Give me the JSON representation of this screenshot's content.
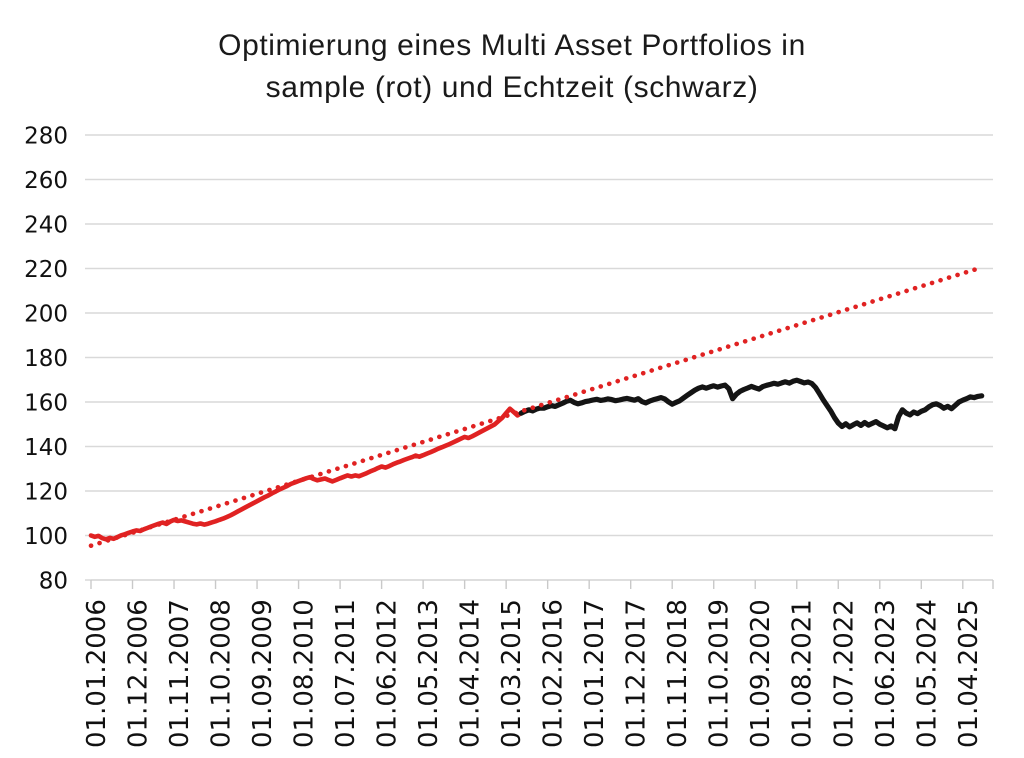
{
  "chart_data": {
    "type": "line",
    "title_line1": "Optimierung eines Multi Asset Portfolios in",
    "title_line2": "sample (rot) und Echtzeit (schwarz)",
    "xlabel": "",
    "ylabel": "",
    "ylim": [
      80,
      280
    ],
    "y_ticks": [
      280,
      260,
      240,
      220,
      200,
      180,
      160,
      140,
      120,
      100,
      80
    ],
    "grid": true,
    "grid_color": "#d9d9d9",
    "axis_color": "#c9c9c9",
    "text_color": "#111111",
    "x_unit": "month",
    "x_slots": 240,
    "x_label_step": 11,
    "x_labels": [
      "01.01.2006",
      "01.12.2006",
      "01.11.2007",
      "01.10.2008",
      "01.09.2009",
      "01.08.2010",
      "01.07.2011",
      "01.06.2012",
      "01.05.2013",
      "01.04.2014",
      "01.03.2015",
      "01.02.2016",
      "01.01.2017",
      "01.12.2017",
      "01.11.2018",
      "01.10.2019",
      "01.09.2020",
      "01.08.2021",
      "01.07.2022",
      "01.06.2023",
      "01.05.2024",
      "01.04.2025"
    ],
    "series": [
      {
        "name": "in sample (rot)",
        "color": "#e02222",
        "style": "solid",
        "width": 4.6,
        "start_index": 0,
        "values": [
          100.0,
          99.4,
          99.8,
          98.8,
          98.3,
          98.9,
          98.5,
          99.3,
          100.1,
          100.6,
          101.2,
          101.8,
          102.3,
          102.0,
          102.8,
          103.4,
          104.1,
          104.7,
          105.3,
          105.8,
          105.2,
          106.3,
          107.0,
          106.5,
          106.8,
          106.3,
          105.8,
          105.3,
          105.0,
          105.4,
          104.9,
          105.3,
          105.9,
          106.4,
          107.0,
          107.6,
          108.3,
          109.1,
          110.0,
          110.9,
          111.8,
          112.7,
          113.6,
          114.5,
          115.4,
          116.3,
          117.2,
          118.0,
          119.0,
          119.8,
          120.7,
          121.5,
          122.3,
          123.2,
          123.8,
          124.5,
          125.1,
          125.7,
          126.2,
          125.4,
          124.8,
          125.2,
          125.6,
          124.9,
          124.3,
          125.0,
          125.7,
          126.4,
          127.0,
          126.5,
          127.0,
          126.6,
          127.3,
          128.0,
          128.8,
          129.5,
          130.3,
          131.0,
          130.5,
          131.2,
          132.0,
          132.7,
          133.3,
          134.0,
          134.6,
          135.2,
          135.9,
          135.4,
          136.1,
          136.8,
          137.5,
          138.2,
          139.0,
          139.7,
          140.4,
          141.1,
          141.9,
          142.7,
          143.5,
          144.3,
          143.8,
          144.6,
          145.5,
          146.4,
          147.3,
          148.2,
          149.1,
          150.0,
          151.5,
          153.0,
          155.0,
          157.0,
          155.5,
          154.0,
          155.0
        ]
      },
      {
        "name": "Echtzeit (schwarz)",
        "color": "#141414",
        "style": "solid",
        "width": 5.2,
        "start_index": 114,
        "values": [
          155.0,
          155.8,
          156.5,
          156.0,
          156.8,
          157.3,
          157.2,
          157.9,
          158.4,
          158.0,
          158.8,
          159.5,
          160.3,
          160.8,
          159.8,
          159.2,
          159.6,
          160.2,
          160.5,
          160.9,
          161.2,
          160.7,
          161.0,
          161.4,
          161.1,
          160.6,
          160.9,
          161.3,
          161.6,
          161.2,
          160.8,
          161.5,
          160.2,
          159.6,
          160.4,
          161.0,
          161.5,
          162.0,
          161.4,
          160.1,
          159.0,
          159.8,
          160.6,
          161.8,
          163.0,
          164.2,
          165.3,
          166.2,
          166.8,
          166.2,
          166.8,
          167.3,
          166.7,
          167.2,
          167.6,
          166.0,
          161.5,
          163.5,
          164.8,
          165.6,
          166.3,
          167.0,
          166.4,
          165.8,
          166.9,
          167.5,
          167.9,
          168.4,
          168.0,
          168.6,
          169.1,
          168.5,
          169.3,
          169.8,
          169.2,
          168.6,
          169.0,
          168.3,
          166.5,
          163.8,
          161.0,
          158.5,
          156.0,
          153.0,
          150.5,
          149.0,
          150.2,
          148.8,
          149.8,
          150.6,
          149.5,
          150.8,
          149.6,
          150.4,
          151.2,
          150.0,
          149.2,
          148.4,
          149.2,
          148.0,
          153.5,
          156.5,
          155.0,
          154.2,
          155.5,
          154.8,
          155.8,
          156.5,
          157.8,
          158.8,
          159.2,
          158.4,
          157.2,
          158.0,
          157.0,
          158.5,
          160.0,
          160.8,
          161.5,
          162.3,
          162.0,
          162.5,
          162.8
        ]
      },
      {
        "name": "Trendlinie",
        "color": "#e02222",
        "style": "dotted",
        "width": 4.6,
        "start_index": 0,
        "trend": {
          "start": 95.4,
          "end": 220.5,
          "end_index": 236
        }
      }
    ]
  }
}
